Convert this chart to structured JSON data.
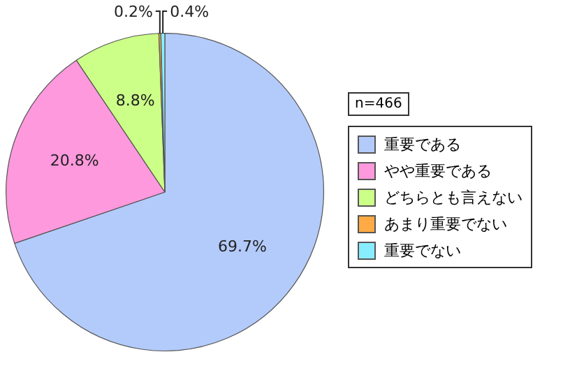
{
  "chart_data": {
    "type": "pie",
    "categories": [
      "重要である",
      "やや重要である",
      "どちらとも言えない",
      "あまり重要でない",
      "重要でない"
    ],
    "values": [
      69.7,
      20.8,
      8.8,
      0.2,
      0.4
    ],
    "colors": [
      "#b3cbfb",
      "#ff99dd",
      "#ccff88",
      "#ffaa44",
      "#88eeff"
    ],
    "value_labels": [
      "69.7%",
      "20.8%",
      "8.8%",
      "0.2%",
      "0.4%"
    ],
    "annotations": [
      "n=466"
    ],
    "legend": "right"
  }
}
